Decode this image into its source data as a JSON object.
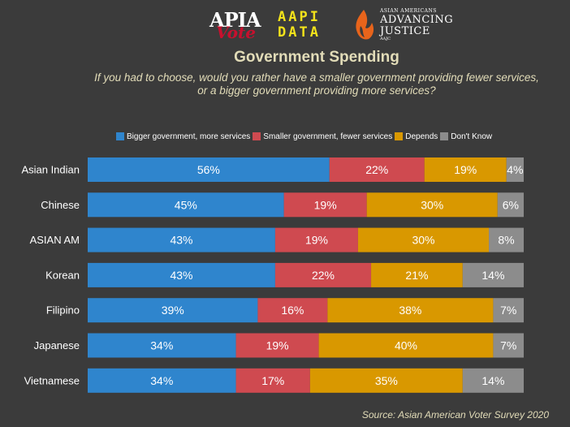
{
  "header": {
    "logos": {
      "apia_line1": "APIA",
      "apia_line2": "Vote",
      "aapi_line1": "AAPI",
      "aapi_line2": "DATA",
      "aaj_small": "ASIAN AMERICANS",
      "aaj_line1": "ADVANCING",
      "aaj_line2": "JUSTICE",
      "aaj_tag": "AAJC"
    }
  },
  "colors": {
    "background": "#3b3b3b",
    "bigger": "#2f85cd",
    "smaller": "#cf4a50",
    "depends": "#d99800",
    "dont_know": "#8c8c8c",
    "title": "#e2dcb8"
  },
  "chart_data": {
    "type": "bar",
    "orientation": "horizontal",
    "stacked": true,
    "title": "Government Spending",
    "subtitle_line1": "If you had to choose, would you rather have a smaller government providing fewer services,",
    "subtitle_line2": "or a bigger government providing more services?",
    "categories": [
      "Asian Indian",
      "Chinese",
      "ASIAN AM",
      "Korean",
      "Filipino",
      "Japanese",
      "Vietnamese"
    ],
    "series": [
      {
        "name": "Bigger government, more services",
        "values": [
          56,
          45,
          43,
          43,
          39,
          34,
          34
        ],
        "labels": [
          "56%",
          "45%",
          "43%",
          "43%",
          "39%",
          "34%",
          "34%"
        ]
      },
      {
        "name": "Smaller government, fewer services",
        "values": [
          22,
          19,
          19,
          22,
          16,
          19,
          17
        ],
        "labels": [
          "22%",
          "19%",
          "19%",
          "22%",
          "16%",
          "19%",
          "17%"
        ]
      },
      {
        "name": "Depends",
        "values": [
          19,
          30,
          30,
          21,
          38,
          40,
          35
        ],
        "labels": [
          "19%",
          "30%",
          "30%",
          "21%",
          "38%",
          "40%",
          "35%"
        ]
      },
      {
        "name": "Don't Know",
        "values": [
          4,
          6,
          8,
          14,
          7,
          7,
          14
        ],
        "labels": [
          "4%",
          "6%",
          "8%",
          "14%",
          "7%",
          "7%",
          "14%"
        ]
      }
    ],
    "legend_position": "top",
    "source": "Source: Asian American Voter Survey 2020"
  }
}
